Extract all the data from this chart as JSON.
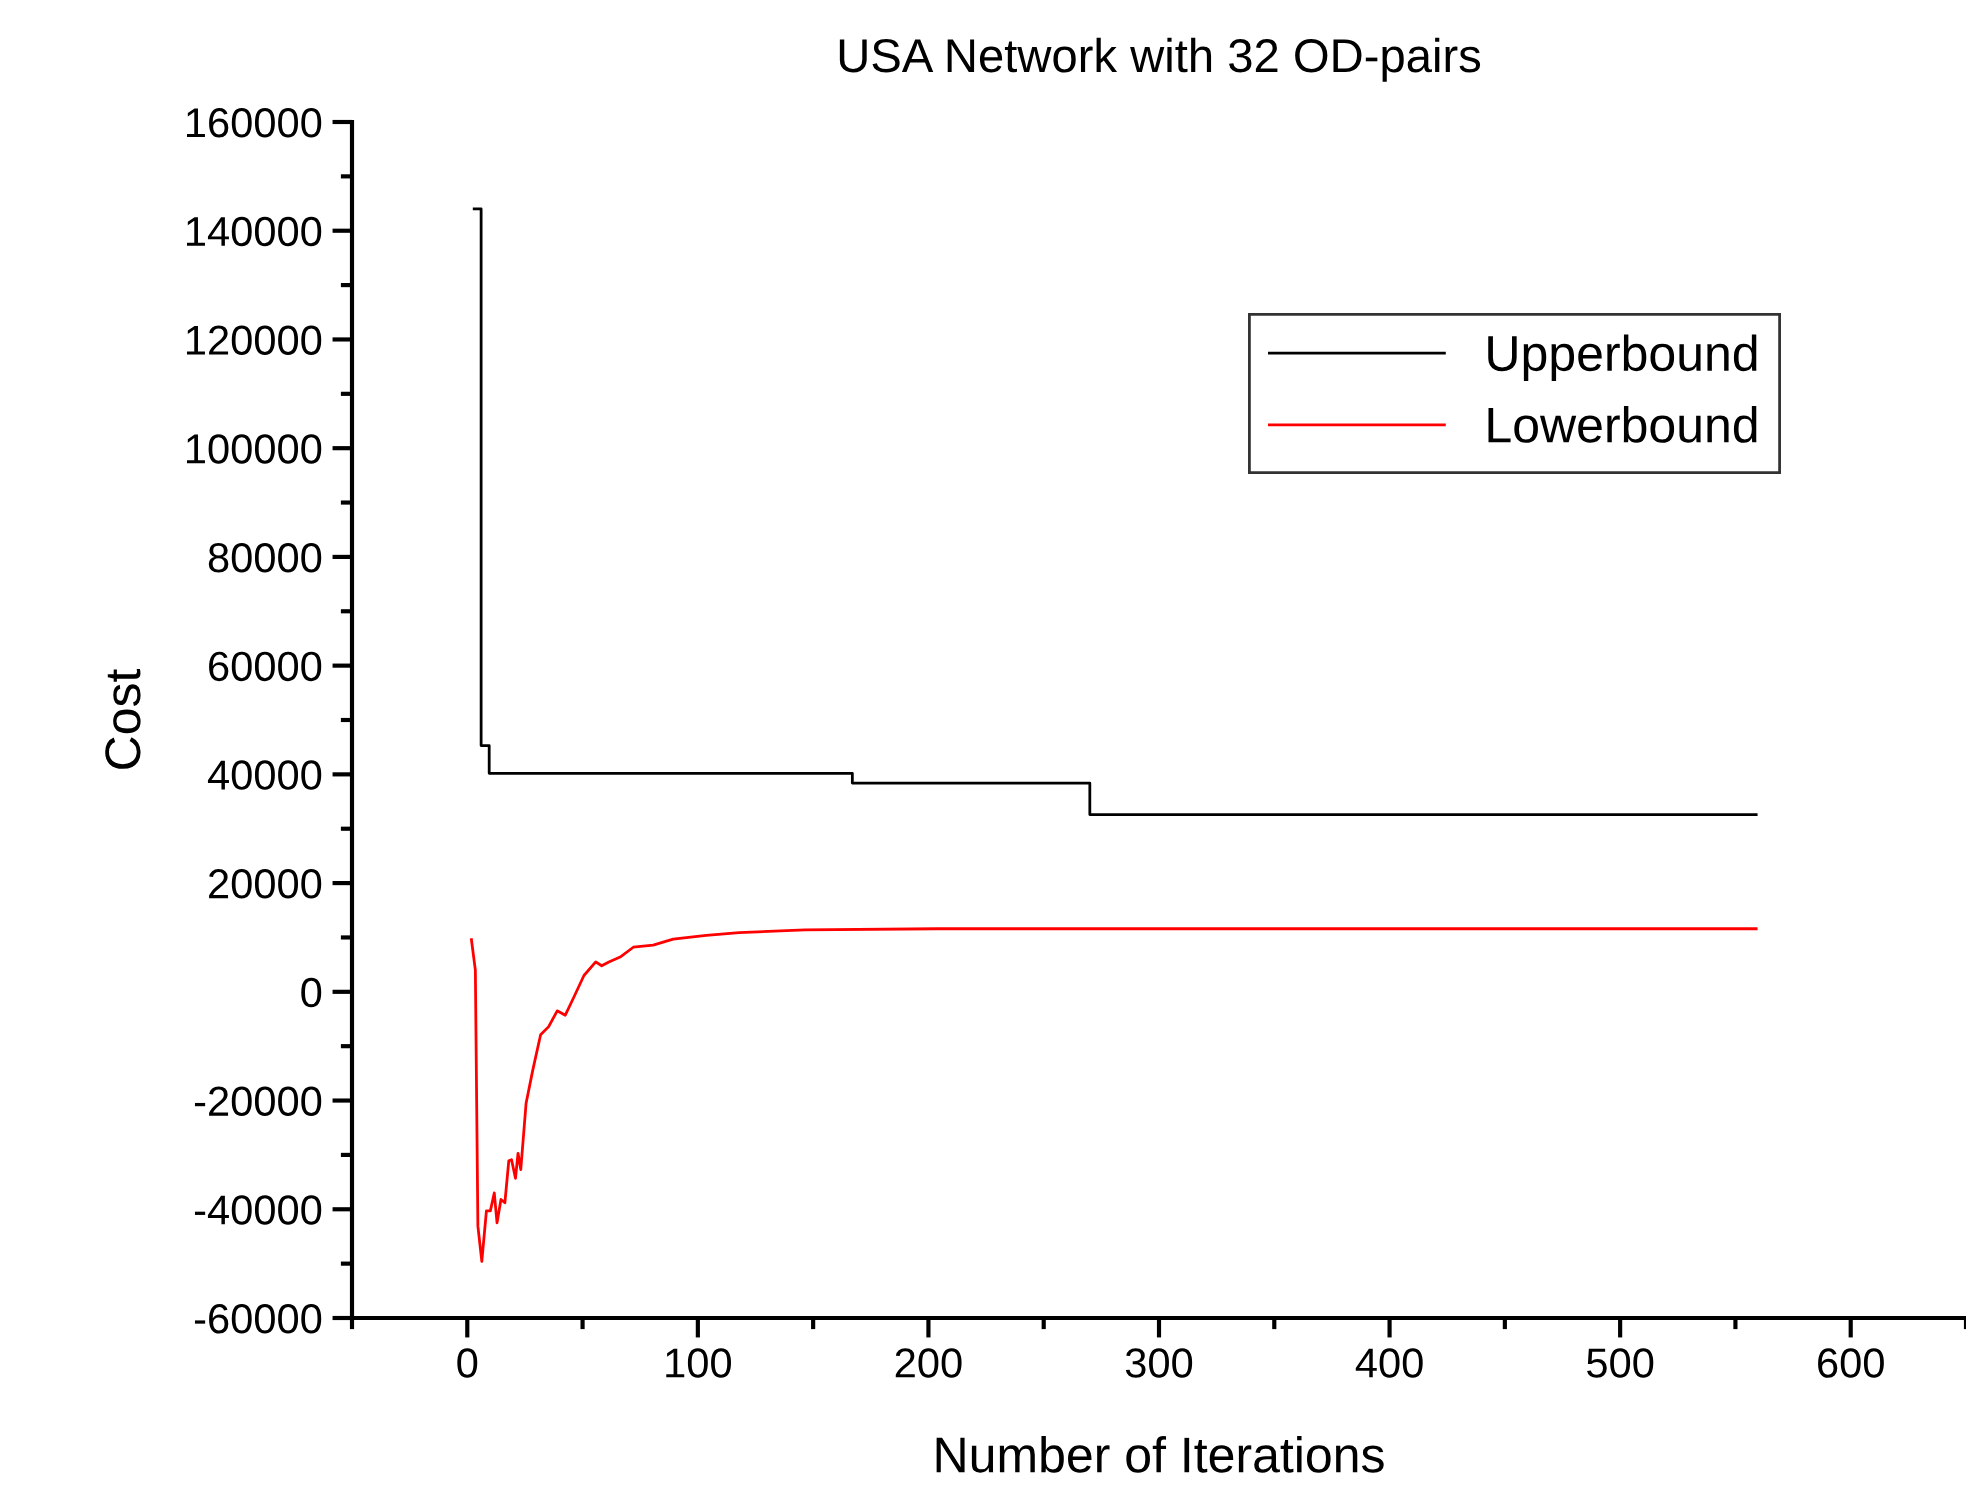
{
  "chart_data": {
    "type": "line",
    "title": "USA Network with 32 OD-pairs",
    "xlabel": "Number of Iterations",
    "ylabel": "Cost",
    "xlim": [
      -50,
      650
    ],
    "xticks": [
      0,
      100,
      200,
      300,
      400,
      500,
      600
    ],
    "ylim": [
      -60000,
      160000
    ],
    "yticks": [
      -60000,
      -40000,
      -20000,
      0,
      20000,
      40000,
      60000,
      80000,
      100000,
      120000,
      140000,
      160000
    ],
    "grid": false,
    "legend": "top right",
    "marker": "none",
    "line_style": "solid",
    "series": [
      {
        "name": "Upperbound",
        "color": "#000000",
        "type": "step",
        "x": [
          3,
          6,
          9.5,
          167,
          270,
          559
        ],
        "values": [
          144000,
          45300,
          40200,
          38400,
          32600,
          32600
        ]
      },
      {
        "name": "Lowerbound",
        "color": "#ff0000",
        "x": [
          1.8,
          3.5,
          4.6,
          6.3,
          8.3,
          10,
          11.7,
          12.9,
          14.6,
          16.3,
          18,
          19.2,
          20.9,
          22,
          23.2,
          25.5,
          28.4,
          31.8,
          35.3,
          39,
          42.5,
          46.2,
          50.6,
          55.7,
          58.3,
          61.4,
          66.3,
          72,
          80.6,
          89.3,
          103.6,
          117.9,
          146.5,
          203.8,
          559
        ],
        "values": [
          9600,
          4000,
          -43100,
          -49600,
          -40300,
          -40300,
          -37000,
          -42500,
          -38200,
          -38800,
          -31100,
          -30900,
          -34300,
          -29700,
          -32700,
          -20500,
          -14400,
          -7900,
          -6400,
          -3500,
          -4300,
          -1000,
          3000,
          5500,
          4800,
          5500,
          6400,
          8200,
          8600,
          9700,
          10400,
          10900,
          11400,
          11600,
          11600
        ]
      }
    ]
  }
}
